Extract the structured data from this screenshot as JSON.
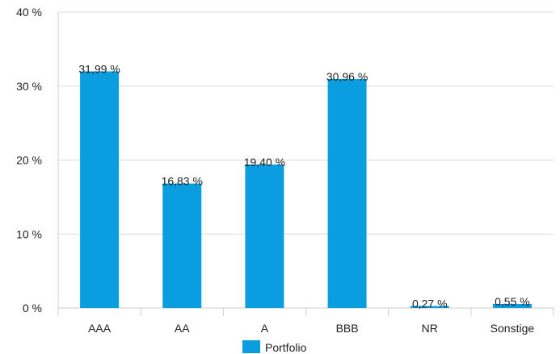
{
  "chart_data": {
    "type": "bar",
    "categories": [
      "AAA",
      "AA",
      "A",
      "BBB",
      "NR",
      "Sonstige"
    ],
    "series": [
      {
        "name": "Portfolio",
        "color": "#0a9ee0",
        "values": [
          31.99,
          16.83,
          19.4,
          30.96,
          0.27,
          0.55
        ],
        "value_labels": [
          "31,99 %",
          "16,83 %",
          "19,40 %",
          "30,96 %",
          "0,27 %",
          "0,55 %"
        ]
      }
    ],
    "ylim": [
      0,
      40
    ],
    "yticks": [
      {
        "value": 0,
        "label": "0 %"
      },
      {
        "value": 10,
        "label": "10 %"
      },
      {
        "value": 20,
        "label": "20 %"
      },
      {
        "value": 30,
        "label": "30 %"
      },
      {
        "value": 40,
        "label": "40 %"
      }
    ],
    "grid": true,
    "legend": "bottom"
  }
}
